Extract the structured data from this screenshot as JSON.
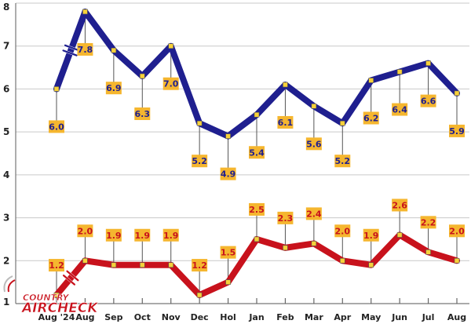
{
  "chart_data": {
    "type": "line",
    "categories": [
      "Aug '24",
      "Aug",
      "Sep",
      "Oct",
      "Nov",
      "Dec",
      "Hol",
      "Jan",
      "Feb",
      "Mar",
      "Apr",
      "May",
      "Jun",
      "Jul",
      "Aug"
    ],
    "series": [
      {
        "values": [
          6.0,
          7.8,
          6.9,
          6.3,
          7.0,
          5.2,
          4.9,
          5.4,
          6.1,
          5.6,
          5.2,
          6.2,
          6.4,
          6.6,
          5.9
        ],
        "color": "#1f1f8f"
      },
      {
        "values": [
          1.2,
          2.0,
          1.9,
          1.9,
          1.9,
          1.2,
          1.5,
          2.5,
          2.3,
          2.4,
          2.0,
          1.9,
          2.6,
          2.2,
          2.0
        ],
        "color": "#c8121c"
      }
    ],
    "data_label_text": [
      [
        "6.0",
        "7.8",
        "6.9",
        "6.3",
        "7.0",
        "5.2",
        "4.9",
        "5.4",
        "6.1",
        "5.6",
        "5.2",
        "6.2",
        "6.4",
        "6.6",
        "5.9"
      ],
      [
        "1.2",
        "2.0",
        "1.9",
        "1.9",
        "1.9",
        "1.2",
        "1.5",
        "2.5",
        "2.3",
        "2.4",
        "2.0",
        "1.9",
        "2.6",
        "2.2",
        "2.0"
      ]
    ],
    "y_ticks": [
      1,
      2,
      3,
      4,
      5,
      6,
      7,
      8
    ],
    "ylim": [
      1,
      8
    ],
    "grid": true,
    "axis_break_between": [
      0,
      1
    ],
    "label_box_color": "#f5b62f"
  },
  "logo": {
    "line1": "COUNTRY",
    "line2": "AIRCHECK"
  }
}
